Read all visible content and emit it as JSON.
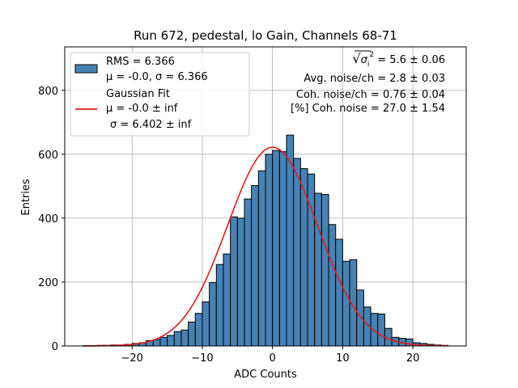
{
  "chart_data": {
    "type": "bar",
    "title": "Run 672, pedestal, lo Gain, Channels 68-71",
    "xlabel": "ADC Counts",
    "ylabel": "Entries",
    "xlim": [
      -29.6,
      27.6
    ],
    "ylim": [
      0,
      936
    ],
    "xticks": [
      -20,
      -10,
      0,
      10,
      20
    ],
    "yticks": [
      0,
      200,
      400,
      600,
      800
    ],
    "grid": true,
    "bin_width": 1,
    "bins": [
      {
        "x0": -27,
        "value": 1
      },
      {
        "x0": -26,
        "value": 1
      },
      {
        "x0": -25,
        "value": 2
      },
      {
        "x0": -24,
        "value": 2
      },
      {
        "x0": -23,
        "value": 3
      },
      {
        "x0": -22,
        "value": 3
      },
      {
        "x0": -21,
        "value": 5
      },
      {
        "x0": -20,
        "value": 8
      },
      {
        "x0": -19,
        "value": 10
      },
      {
        "x0": -18,
        "value": 17
      },
      {
        "x0": -17,
        "value": 20
      },
      {
        "x0": -16,
        "value": 27
      },
      {
        "x0": -15,
        "value": 33
      },
      {
        "x0": -14,
        "value": 45
      },
      {
        "x0": -13,
        "value": 50
      },
      {
        "x0": -12,
        "value": 75
      },
      {
        "x0": -11,
        "value": 102
      },
      {
        "x0": -10,
        "value": 138
      },
      {
        "x0": -9,
        "value": 198
      },
      {
        "x0": -8,
        "value": 255
      },
      {
        "x0": -7,
        "value": 288
      },
      {
        "x0": -6,
        "value": 404
      },
      {
        "x0": -5,
        "value": 400
      },
      {
        "x0": -4,
        "value": 460
      },
      {
        "x0": -3,
        "value": 502
      },
      {
        "x0": -2,
        "value": 548
      },
      {
        "x0": -1,
        "value": 600
      },
      {
        "x0": 0,
        "value": 612
      },
      {
        "x0": 1,
        "value": 608
      },
      {
        "x0": 2,
        "value": 660
      },
      {
        "x0": 3,
        "value": 587
      },
      {
        "x0": 4,
        "value": 555
      },
      {
        "x0": 5,
        "value": 538
      },
      {
        "x0": 6,
        "value": 478
      },
      {
        "x0": 7,
        "value": 474
      },
      {
        "x0": 8,
        "value": 380
      },
      {
        "x0": 9,
        "value": 334
      },
      {
        "x0": 10,
        "value": 265
      },
      {
        "x0": 11,
        "value": 270
      },
      {
        "x0": 12,
        "value": 175
      },
      {
        "x0": 13,
        "value": 122
      },
      {
        "x0": 14,
        "value": 102
      },
      {
        "x0": 15,
        "value": 100
      },
      {
        "x0": 16,
        "value": 55
      },
      {
        "x0": 17,
        "value": 27
      },
      {
        "x0": 18,
        "value": 24
      },
      {
        "x0": 19,
        "value": 22
      },
      {
        "x0": 20,
        "value": 10
      },
      {
        "x0": 21,
        "value": 8
      },
      {
        "x0": 22,
        "value": 5
      },
      {
        "x0": 23,
        "value": 3
      },
      {
        "x0": 24,
        "value": 2
      }
    ],
    "series": [
      {
        "name": "RMS = 6.366",
        "name_line2": "μ = -0.0, σ = 6.366",
        "kind": "histogram",
        "color": "#4682b4",
        "edge_color": "#000000"
      },
      {
        "name": "Gaussian Fit",
        "name_line2": "μ = -0.0 ± inf",
        "name_line3": "σ = 6.402 ± inf",
        "kind": "line",
        "color": "#e31a1c",
        "mu": 0.0,
        "sigma": 6.402,
        "amplitude": 622,
        "x_range": [
          -27,
          25
        ]
      }
    ],
    "legend_position": "top-left",
    "annotations": [
      {
        "prefix": "√",
        "symbol": "σ",
        "subscript": "i",
        "superscript": "2",
        "text": " = 5.6 ± 0.06"
      },
      {
        "text": "Avg. noise/ch = 2.8 ± 0.03"
      },
      {
        "text": "Coh. noise/ch = 0.76 ± 0.04"
      },
      {
        "text": "[%] Coh. noise = 27.0 ± 1.54"
      }
    ]
  },
  "colors": {
    "bar_fill": "#4682b4",
    "bar_edge": "#000000",
    "fit_line": "#e31a1c",
    "grid": "#b0b0b0",
    "axes": "#000000"
  }
}
